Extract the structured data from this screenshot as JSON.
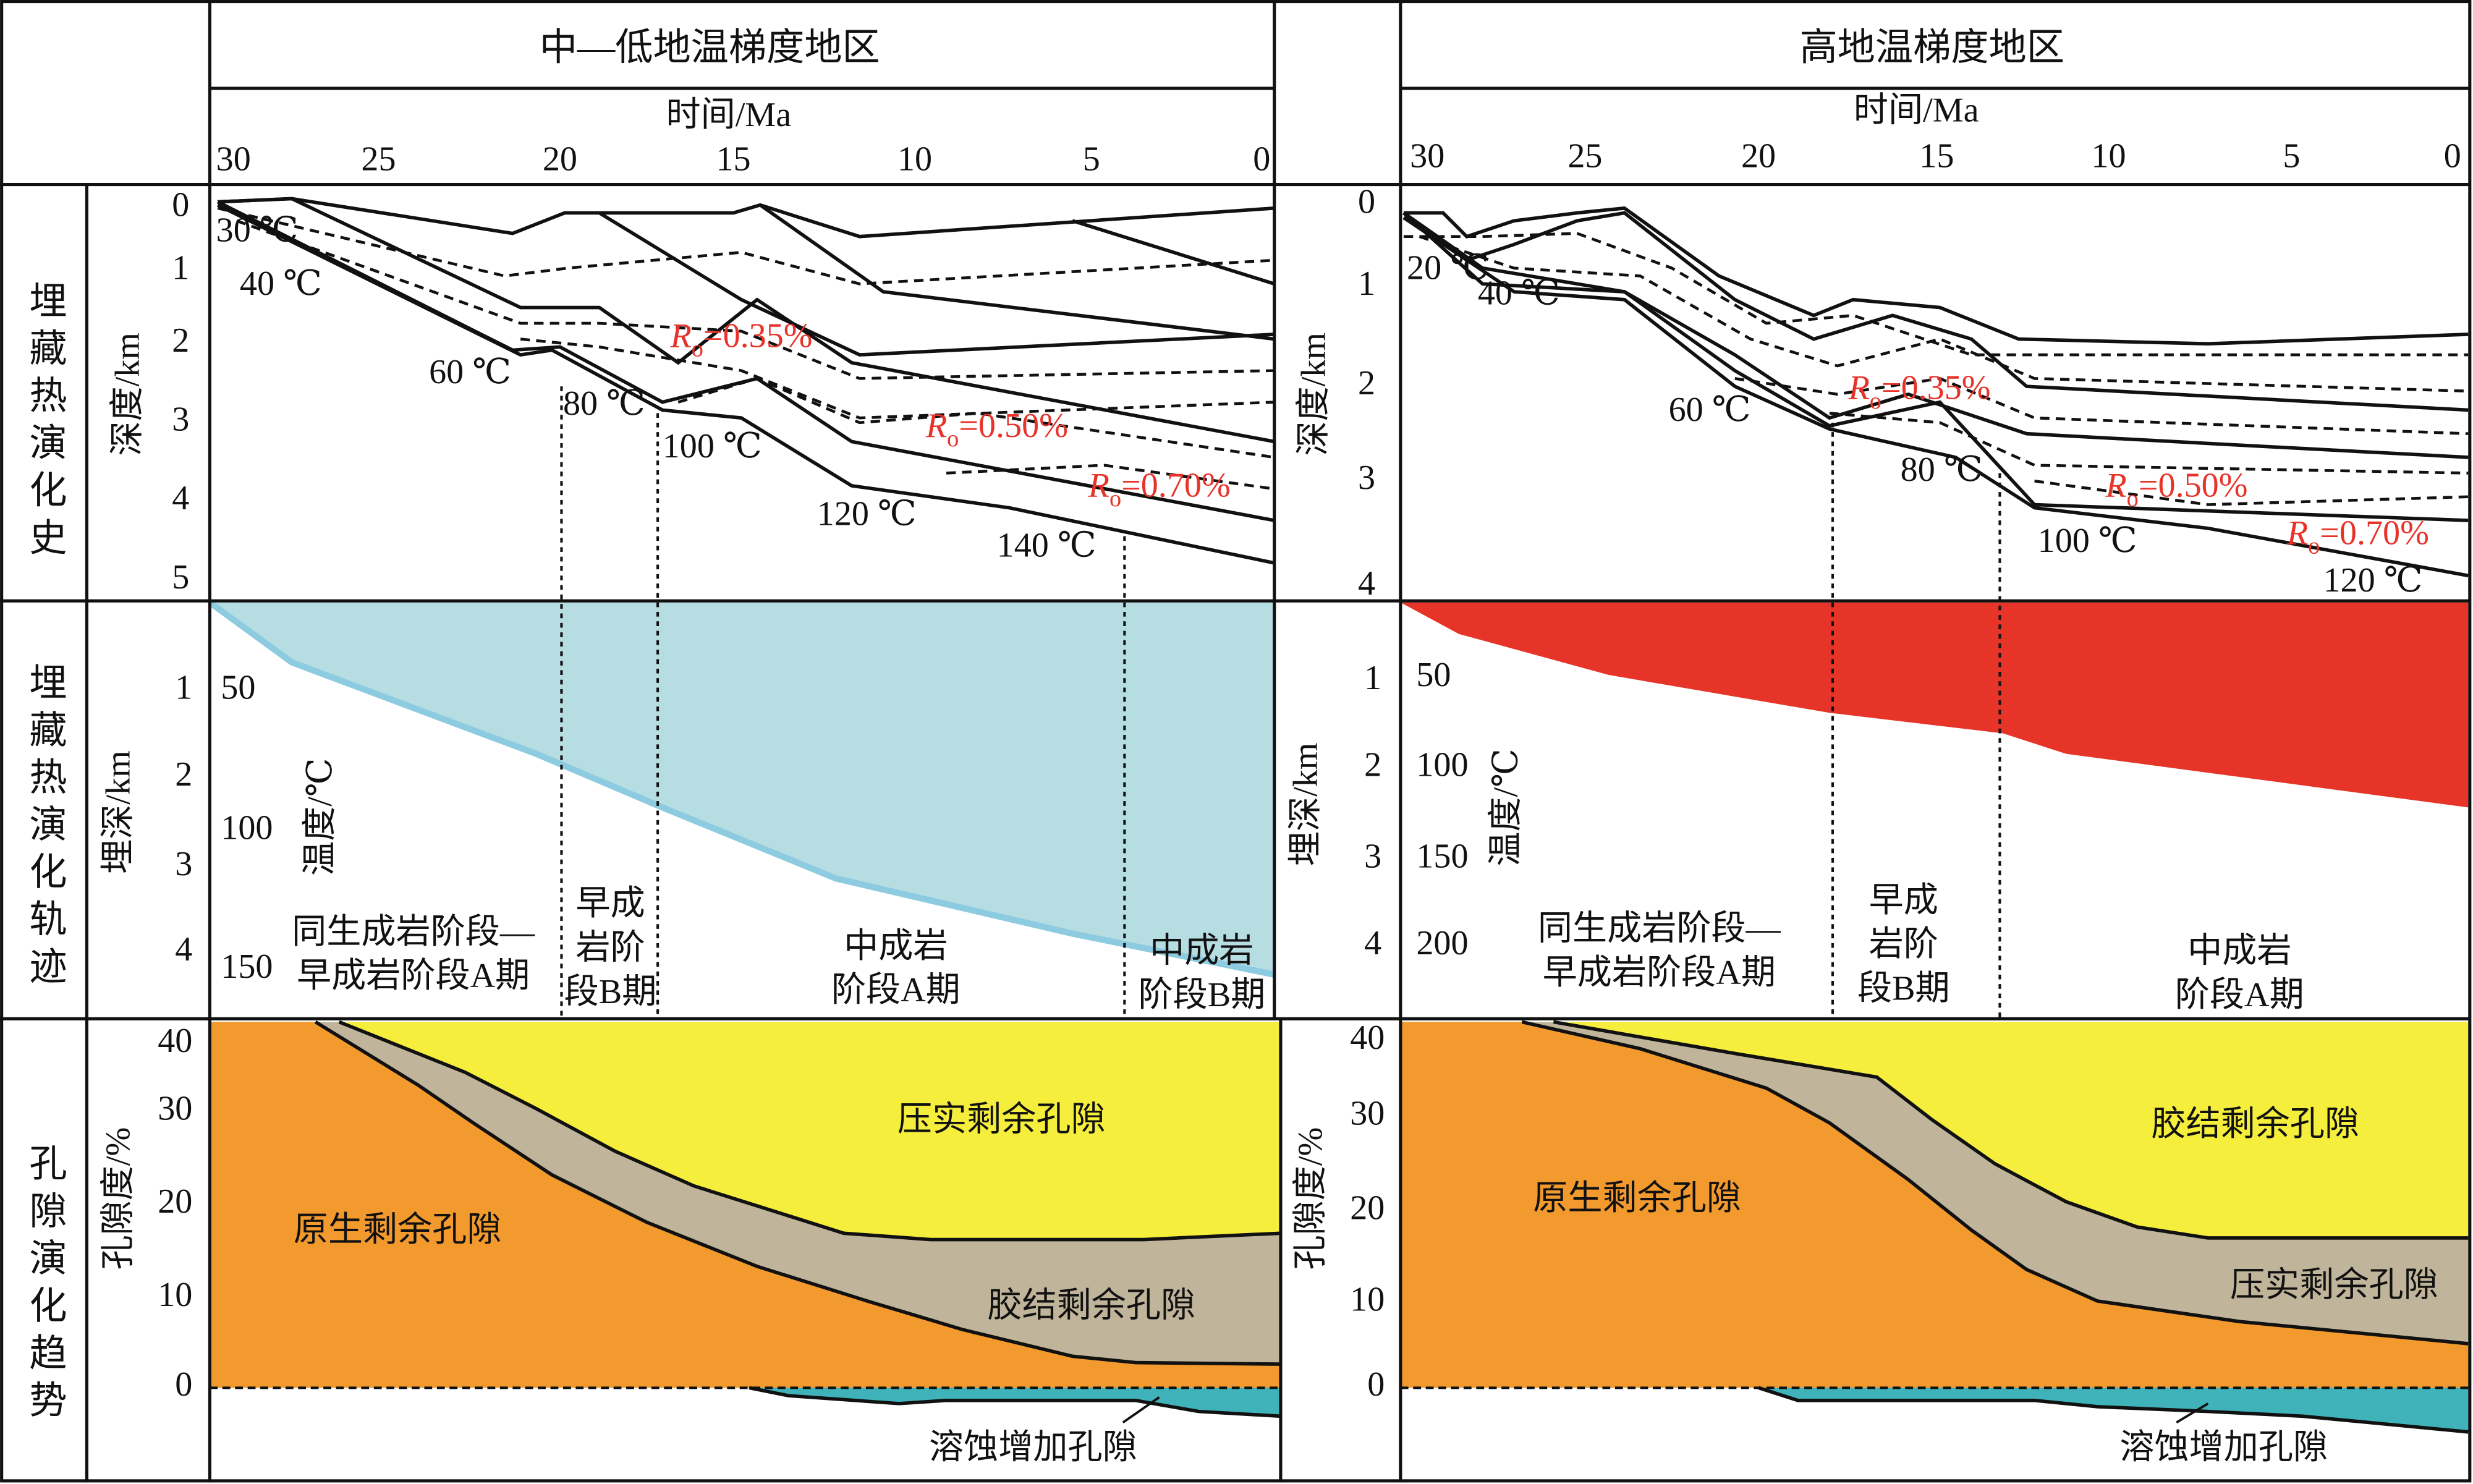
{
  "header": {
    "left_title": "中—低地温梯度地区",
    "right_title": "高地温梯度地区",
    "time_label": "时间/Ma",
    "time_ticks": [
      "30",
      "25",
      "20",
      "15",
      "10",
      "5",
      "0"
    ]
  },
  "row_labels": [
    "埋藏热演化史",
    "埋藏热演化轨迹",
    "孔隙演化趋势"
  ],
  "left": {
    "depth_label": "深度/km",
    "depth_ticks": [
      "0",
      "1",
      "2",
      "3",
      "4",
      "5"
    ],
    "isotherms": [
      "30 ℃",
      "40 ℃",
      "60 ℃",
      "80 ℃",
      "100 ℃",
      "120 ℃",
      "140 ℃"
    ],
    "ro_labels": [
      {
        "symbol": "R",
        "sub": "o",
        "value": "=0.35%"
      },
      {
        "symbol": "R",
        "sub": "o",
        "value": "=0.50%"
      },
      {
        "symbol": "R",
        "sub": "o",
        "value": "=0.70%"
      }
    ],
    "track_depth_label": "埋深/km",
    "track_temp_label": "温度/℃",
    "track_depth_ticks": [
      "1",
      "2",
      "3",
      "4"
    ],
    "track_temp_ticks": [
      "50",
      "100",
      "150"
    ],
    "stages": [
      [
        "同生成岩阶段—",
        "早成岩阶段A期"
      ],
      [
        "早成",
        "岩阶",
        "段B期"
      ],
      [
        "中成岩",
        "阶段A期"
      ],
      [
        "中成岩",
        "阶段B期"
      ]
    ],
    "porosity_label": "孔隙度/%",
    "porosity_ticks": [
      "40",
      "30",
      "20",
      "10",
      "0"
    ],
    "zones": [
      "原生剩余孔隙",
      "压实剩余孔隙",
      "胶结剩余孔隙",
      "溶蚀增加孔隙"
    ]
  },
  "right": {
    "depth_label": "深度/km",
    "depth_ticks": [
      "0",
      "1",
      "2",
      "3",
      "4"
    ],
    "isotherms": [
      "20 ℃",
      "40 ℃",
      "60 ℃",
      "80 ℃",
      "100 ℃",
      "120 ℃"
    ],
    "ro_labels": [
      {
        "symbol": "R",
        "sub": "o",
        "value": "=0.35%"
      },
      {
        "symbol": "R",
        "sub": "o",
        "value": "=0.50%"
      },
      {
        "symbol": "R",
        "sub": "o",
        "value": "=0.70%"
      }
    ],
    "track_depth_label": "埋深/km",
    "track_temp_label": "温度/℃",
    "track_depth_ticks": [
      "1",
      "2",
      "3",
      "4"
    ],
    "track_temp_ticks": [
      "50",
      "100",
      "150",
      "200"
    ],
    "stages": [
      [
        "同生成岩阶段—",
        "早成岩阶段A期"
      ],
      [
        "早成",
        "岩阶",
        "段B期"
      ],
      [
        "中成岩",
        "阶段A期"
      ]
    ],
    "porosity_label": "孔隙度/%",
    "porosity_ticks": [
      "40",
      "30",
      "20",
      "10",
      "0"
    ],
    "zones": [
      "原生剩余孔隙",
      "胶结剩余孔隙",
      "压实剩余孔隙",
      "溶蚀增加孔隙"
    ]
  }
}
